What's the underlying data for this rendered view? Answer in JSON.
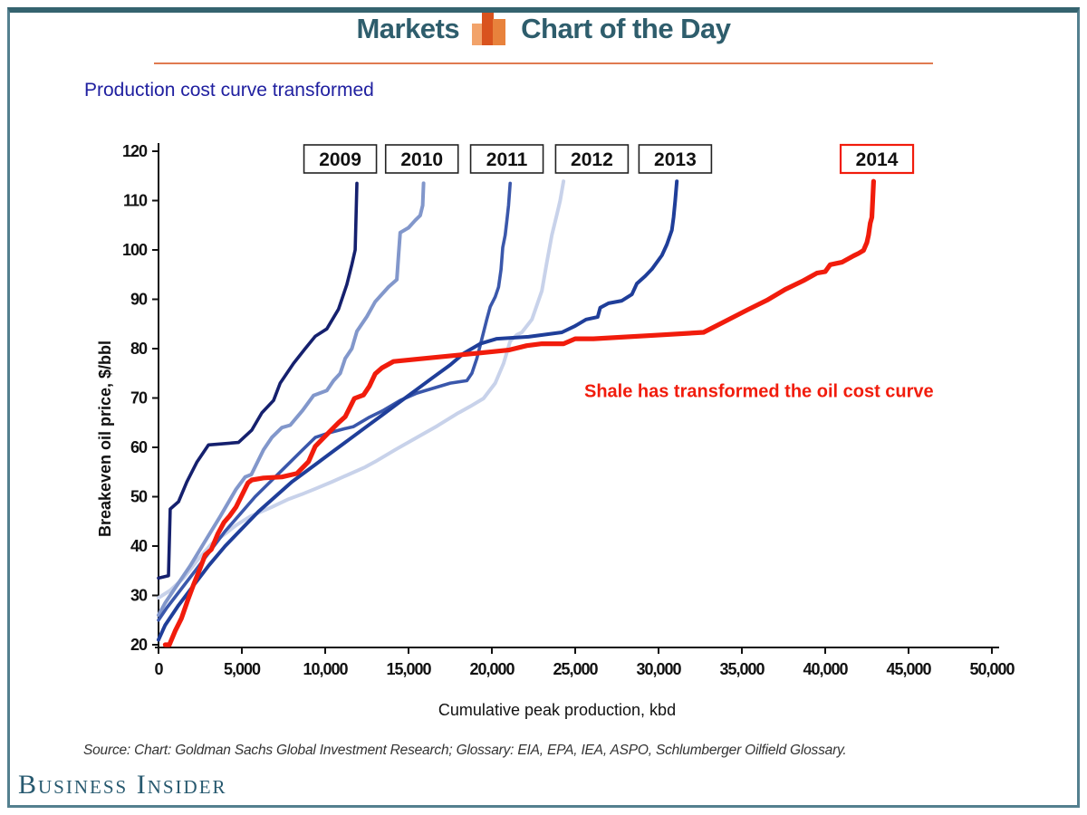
{
  "header": {
    "brand": "Markets",
    "title": "Chart of the Day",
    "icon": "bar-chart-icon",
    "accent_color": "#e07a50",
    "text_color": "#2e5d6c"
  },
  "chart_data": {
    "type": "line",
    "title": "Production cost curve transformed",
    "title_color": "#2020a0",
    "xlabel": "Cumulative peak production, kbd",
    "ylabel": "Breakeven oil price, $/bbl",
    "xlim": [
      0,
      50000
    ],
    "ylim": [
      20,
      120
    ],
    "grid": false,
    "x_ticks": [
      {
        "v": 0,
        "label": "0"
      },
      {
        "v": 5000,
        "label": "5,000"
      },
      {
        "v": 10000,
        "label": "10,000"
      },
      {
        "v": 15000,
        "label": "15,000"
      },
      {
        "v": 20000,
        "label": "20,000"
      },
      {
        "v": 25000,
        "label": "25,000"
      },
      {
        "v": 30000,
        "label": "30,000"
      },
      {
        "v": 35000,
        "label": "35,000"
      },
      {
        "v": 40000,
        "label": "40,000"
      },
      {
        "v": 45000,
        "label": "45,000"
      },
      {
        "v": 50000,
        "label": "50,000"
      }
    ],
    "y_ticks": [
      {
        "v": 20,
        "label": "20"
      },
      {
        "v": 30,
        "label": "30"
      },
      {
        "v": 40,
        "label": "40"
      },
      {
        "v": 50,
        "label": "50"
      },
      {
        "v": 60,
        "label": "60"
      },
      {
        "v": 70,
        "label": "70"
      },
      {
        "v": 80,
        "label": "80"
      },
      {
        "v": 90,
        "label": "90"
      },
      {
        "v": 100,
        "label": "100"
      },
      {
        "v": 110,
        "label": "110"
      },
      {
        "v": 120,
        "label": "120"
      }
    ],
    "annotation": {
      "text": "Shale has transformed the oil cost curve",
      "x_kbd": 25000,
      "y_usd": 72,
      "color": "#f11c0c"
    },
    "legend_style": "boxed year labels above each curve top",
    "series": [
      {
        "name": "2012",
        "color": "#c8d2ea",
        "width": 4,
        "label_x_kbd": 26000,
        "label_border": "#222222",
        "points": [
          [
            0,
            29.5
          ],
          [
            700,
            31
          ],
          [
            1500,
            33.5
          ],
          [
            2300,
            37
          ],
          [
            3200,
            40.5
          ],
          [
            4000,
            42.5
          ],
          [
            4650,
            44.2
          ],
          [
            5500,
            46
          ],
          [
            6800,
            47.9
          ],
          [
            7800,
            49.5
          ],
          [
            8600,
            50.5
          ],
          [
            9400,
            51.6
          ],
          [
            10400,
            53
          ],
          [
            11400,
            54.5
          ],
          [
            12400,
            56
          ],
          [
            13000,
            57.1
          ],
          [
            14200,
            59.5
          ],
          [
            15500,
            62
          ],
          [
            16700,
            64.3
          ],
          [
            17900,
            66.8
          ],
          [
            18700,
            68.3
          ],
          [
            19500,
            69.9
          ],
          [
            20200,
            73
          ],
          [
            20700,
            77
          ],
          [
            21100,
            81.5
          ],
          [
            21500,
            82.8
          ],
          [
            21800,
            83.3
          ],
          [
            22400,
            85.9
          ],
          [
            22700,
            88.8
          ],
          [
            23000,
            91.7
          ],
          [
            23300,
            97.5
          ],
          [
            23600,
            103
          ],
          [
            23900,
            107.2
          ],
          [
            24100,
            110
          ],
          [
            24300,
            113.9
          ]
        ]
      },
      {
        "name": "2010",
        "color": "#8297cb",
        "width": 4,
        "label_x_kbd": 15800,
        "label_border": "#222222",
        "points": [
          [
            0,
            26
          ],
          [
            400,
            28.5
          ],
          [
            1000,
            31.5
          ],
          [
            1900,
            36
          ],
          [
            2800,
            41
          ],
          [
            3700,
            46
          ],
          [
            4650,
            51.5
          ],
          [
            5200,
            54
          ],
          [
            5570,
            54.5
          ],
          [
            6300,
            59.5
          ],
          [
            6800,
            62
          ],
          [
            7400,
            64
          ],
          [
            7900,
            64.5
          ],
          [
            8650,
            67.5
          ],
          [
            9300,
            70.5
          ],
          [
            10100,
            71.5
          ],
          [
            10500,
            73.5
          ],
          [
            10900,
            75
          ],
          [
            11200,
            78
          ],
          [
            11600,
            80
          ],
          [
            11900,
            83.5
          ],
          [
            12500,
            86.5
          ],
          [
            13000,
            89.5
          ],
          [
            13800,
            92.5
          ],
          [
            14300,
            94
          ],
          [
            14400,
            99
          ],
          [
            14500,
            103.5
          ],
          [
            15000,
            104.5
          ],
          [
            15400,
            106
          ],
          [
            15700,
            107
          ],
          [
            15850,
            109
          ],
          [
            15900,
            113.5
          ]
        ]
      },
      {
        "name": "2011",
        "color": "#3a57ab",
        "width": 3.6,
        "label_x_kbd": 20900,
        "label_border": "#222222",
        "points": [
          [
            0,
            25
          ],
          [
            500,
            27.5
          ],
          [
            1300,
            31
          ],
          [
            2200,
            35
          ],
          [
            3100,
            39
          ],
          [
            4000,
            43
          ],
          [
            4900,
            46.5
          ],
          [
            5800,
            50
          ],
          [
            6700,
            53
          ],
          [
            7600,
            56
          ],
          [
            8500,
            59
          ],
          [
            9400,
            62
          ],
          [
            10300,
            63
          ],
          [
            11200,
            63.8
          ],
          [
            11700,
            64.2
          ],
          [
            12600,
            66
          ],
          [
            13500,
            67.5
          ],
          [
            14500,
            69.5
          ],
          [
            15500,
            71
          ],
          [
            16500,
            72
          ],
          [
            17500,
            73
          ],
          [
            18500,
            73.5
          ],
          [
            18800,
            75
          ],
          [
            19100,
            78
          ],
          [
            19400,
            82
          ],
          [
            19700,
            86
          ],
          [
            19900,
            88.5
          ],
          [
            20200,
            90.5
          ],
          [
            20400,
            92.5
          ],
          [
            20550,
            96
          ],
          [
            20650,
            100.5
          ],
          [
            20800,
            103
          ],
          [
            20900,
            106
          ],
          [
            21000,
            109
          ],
          [
            21100,
            113.5
          ]
        ]
      },
      {
        "name": "2013",
        "color": "#1f3e99",
        "width": 4,
        "label_x_kbd": 31000,
        "label_border": "#222222",
        "points": [
          [
            0,
            21
          ],
          [
            400,
            24
          ],
          [
            1200,
            28
          ],
          [
            2100,
            32
          ],
          [
            3000,
            36
          ],
          [
            4000,
            40
          ],
          [
            5000,
            43.5
          ],
          [
            6000,
            47
          ],
          [
            7000,
            50
          ],
          [
            8000,
            53
          ],
          [
            9400,
            56.5
          ],
          [
            10400,
            59
          ],
          [
            11400,
            61.5
          ],
          [
            12400,
            64
          ],
          [
            13400,
            66.5
          ],
          [
            14400,
            69
          ],
          [
            15400,
            71.5
          ],
          [
            16400,
            74
          ],
          [
            17500,
            76.7
          ],
          [
            18300,
            79
          ],
          [
            19300,
            81
          ],
          [
            20300,
            82
          ],
          [
            22200,
            82.4
          ],
          [
            24200,
            83.3
          ],
          [
            25000,
            84.6
          ],
          [
            25650,
            85.9
          ],
          [
            26350,
            86.4
          ],
          [
            26500,
            88.3
          ],
          [
            27000,
            89.2
          ],
          [
            27800,
            89.7
          ],
          [
            28400,
            91
          ],
          [
            28700,
            93.2
          ],
          [
            29200,
            94.7
          ],
          [
            29600,
            96.1
          ],
          [
            30200,
            98.9
          ],
          [
            30500,
            101.1
          ],
          [
            30800,
            104
          ],
          [
            30900,
            106.6
          ],
          [
            31000,
            110
          ],
          [
            31100,
            113.9
          ]
        ]
      },
      {
        "name": "2009",
        "color": "#15206e",
        "width": 3.6,
        "label_x_kbd": 10900,
        "label_border": "#222222",
        "points": [
          [
            0,
            33.5
          ],
          [
            600,
            34
          ],
          [
            700,
            47.5
          ],
          [
            1200,
            49
          ],
          [
            1700,
            53
          ],
          [
            2300,
            57
          ],
          [
            3000,
            60.5
          ],
          [
            4800,
            61
          ],
          [
            5600,
            63.5
          ],
          [
            6200,
            67
          ],
          [
            6900,
            69.5
          ],
          [
            7300,
            73
          ],
          [
            8100,
            77
          ],
          [
            8800,
            80
          ],
          [
            9400,
            82.5
          ],
          [
            10100,
            84
          ],
          [
            10800,
            88
          ],
          [
            11300,
            93
          ],
          [
            11600,
            97
          ],
          [
            11800,
            100
          ],
          [
            11900,
            113.5
          ]
        ]
      },
      {
        "name": "2014",
        "color": "#f11c0c",
        "width": 5.2,
        "label_x_kbd": 43100,
        "label_border": "#f11c0c",
        "points": [
          [
            400,
            20
          ],
          [
            650,
            20
          ],
          [
            1000,
            22.8
          ],
          [
            1370,
            25.3
          ],
          [
            1750,
            29
          ],
          [
            2080,
            32
          ],
          [
            2450,
            35.1
          ],
          [
            2800,
            38.2
          ],
          [
            3170,
            39.3
          ],
          [
            3550,
            42.4
          ],
          [
            3930,
            44.8
          ],
          [
            4260,
            46.1
          ],
          [
            4650,
            47.9
          ],
          [
            5370,
            52.8
          ],
          [
            5600,
            53.4
          ],
          [
            6300,
            53.8
          ],
          [
            7400,
            54
          ],
          [
            8300,
            54.7
          ],
          [
            9000,
            57.1
          ],
          [
            9400,
            60.2
          ],
          [
            10100,
            62.6
          ],
          [
            10800,
            65
          ],
          [
            11200,
            66.2
          ],
          [
            11750,
            69.9
          ],
          [
            12300,
            70.6
          ],
          [
            12650,
            72.4
          ],
          [
            13000,
            74.9
          ],
          [
            13400,
            76.1
          ],
          [
            14100,
            77.4
          ],
          [
            15600,
            77.9
          ],
          [
            17400,
            78.5
          ],
          [
            19200,
            79.1
          ],
          [
            21000,
            79.7
          ],
          [
            22100,
            80.6
          ],
          [
            23000,
            81
          ],
          [
            24300,
            81
          ],
          [
            25000,
            82
          ],
          [
            26100,
            82
          ],
          [
            30300,
            82.8
          ],
          [
            32700,
            83.3
          ],
          [
            33800,
            85.2
          ],
          [
            35300,
            87.8
          ],
          [
            36500,
            89.8
          ],
          [
            37600,
            92
          ],
          [
            38700,
            93.8
          ],
          [
            39500,
            95.3
          ],
          [
            40000,
            95.6
          ],
          [
            40300,
            97
          ],
          [
            41000,
            97.5
          ],
          [
            41700,
            98.8
          ],
          [
            42000,
            99.3
          ],
          [
            42300,
            99.9
          ],
          [
            42500,
            101.5
          ],
          [
            42600,
            103
          ],
          [
            42700,
            105.4
          ],
          [
            42800,
            106.6
          ],
          [
            42850,
            110
          ],
          [
            42900,
            113.9
          ]
        ]
      }
    ]
  },
  "source": {
    "text": "Source: Chart: Goldman Sachs Global Investment Research; Glossary: EIA, EPA, IEA, ASPO, Schlumberger Oilfield Glossary."
  },
  "footer": {
    "logo": "Business Insider",
    "logo_color": "#27596f"
  }
}
